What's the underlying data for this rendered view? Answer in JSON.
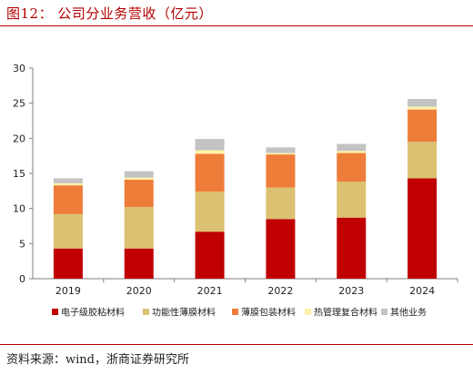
{
  "header": {
    "title": "图12： 公司分业务营收（亿元）"
  },
  "footer": {
    "source": "资料来源：wind，浙商证券研究所"
  },
  "colors": [
    "#c00000",
    "#dbc171",
    "#ee7d3a",
    "#fff2a8",
    "#c3c3c3"
  ],
  "chart_data": {
    "type": "bar",
    "stacked": true,
    "title": "",
    "xlabel": "",
    "ylabel": "",
    "categories": [
      "2019",
      "2020",
      "2021",
      "2022",
      "2023",
      "2024"
    ],
    "ylim": [
      0,
      30
    ],
    "yticks": [
      "0",
      "5",
      "10",
      "15",
      "20",
      "25",
      "30"
    ],
    "grid": false,
    "legend_position": "bottom",
    "series": [
      {
        "name": "电子级胶粘材料",
        "values": [
          4.3,
          4.3,
          6.7,
          8.5,
          8.7,
          14.3
        ]
      },
      {
        "name": "功能性薄膜材料",
        "values": [
          4.9,
          5.9,
          5.7,
          4.5,
          5.1,
          5.2
        ]
      },
      {
        "name": "薄膜包装材料",
        "values": [
          4.1,
          3.9,
          5.4,
          4.7,
          4.1,
          4.6
        ]
      },
      {
        "name": "热管理复合材料",
        "values": [
          0.3,
          0.3,
          0.5,
          0.2,
          0.3,
          0.4
        ]
      },
      {
        "name": "其他业务",
        "values": [
          0.7,
          0.9,
          1.6,
          0.8,
          1.0,
          1.1
        ]
      }
    ]
  }
}
